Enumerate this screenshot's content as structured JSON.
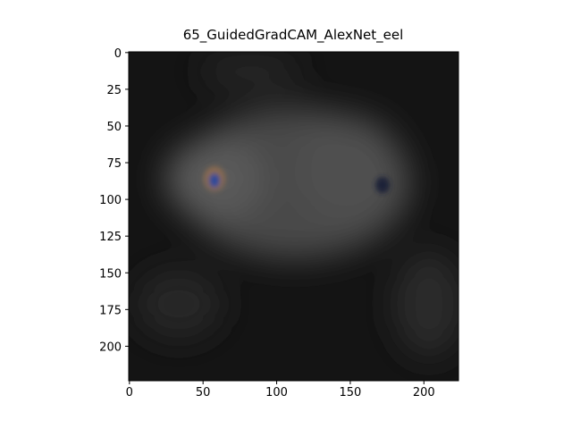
{
  "chart_data": {
    "type": "image",
    "title": "65_GuidedGradCAM_AlexNet_eel",
    "xlim": [
      -0.5,
      223.5
    ],
    "xticks": [
      0,
      50,
      100,
      150,
      200
    ],
    "ylim": [
      223.5,
      -0.5
    ],
    "yticks": [
      0,
      25,
      50,
      75,
      100,
      125,
      150,
      175,
      200
    ]
  }
}
